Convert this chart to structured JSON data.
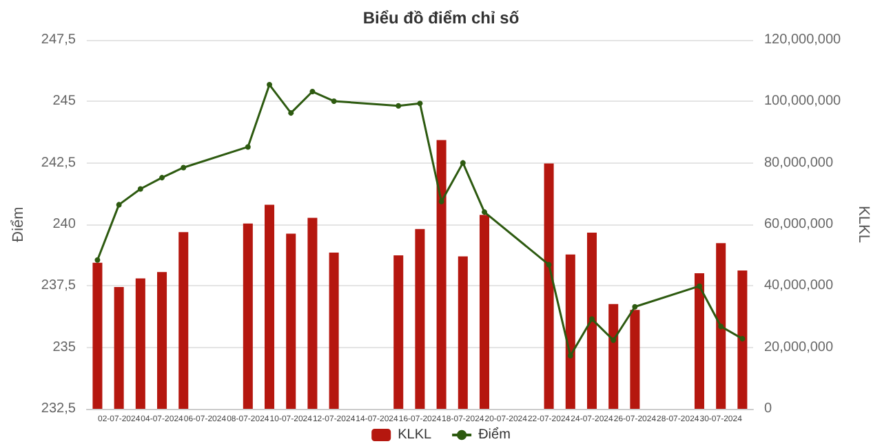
{
  "chart_data": {
    "type": "bar",
    "title": "Biểu đồ điểm chỉ số",
    "ylabel": "Điểm",
    "y2label": "KLKL",
    "categories": [
      null,
      "02-07-2024",
      null,
      "04-07-2024",
      null,
      "06-07-2024",
      null,
      "08-07-2024",
      null,
      "10-07-2024",
      null,
      "12-07-2024",
      null,
      "14-07-2024",
      null,
      "16-07-2024",
      null,
      "18-07-2024",
      null,
      "20-07-2024",
      null,
      "22-07-2024",
      null,
      "24-07-2024",
      null,
      "26-07-2024",
      null,
      "28-07-2024",
      null,
      "30-07-2024",
      null
    ],
    "series": [
      {
        "name": "KLKL",
        "axis": "y2",
        "color": "#b5170f",
        "values": [
          47500000,
          39600000,
          42400000,
          44500000,
          57500000,
          null,
          null,
          60300000,
          66400000,
          57000000,
          62100000,
          50800000,
          null,
          null,
          49900000,
          58500000,
          87400000,
          49600000,
          63100000,
          null,
          null,
          79800000,
          50200000,
          57300000,
          34100000,
          32200000,
          null,
          null,
          44100000,
          53900000,
          45000000
        ]
      },
      {
        "name": "Điểm",
        "type": "line",
        "axis": "y",
        "color": "#2d5a10",
        "marker": "circle",
        "line_style": "solid",
        "values": [
          238.55,
          240.8,
          241.44,
          241.9,
          242.31,
          null,
          null,
          243.15,
          245.68,
          244.53,
          245.4,
          245.01,
          null,
          null,
          244.82,
          244.92,
          240.93,
          242.5,
          240.5,
          null,
          null,
          238.36,
          234.66,
          236.15,
          235.29,
          236.65,
          null,
          null,
          237.49,
          235.85,
          235.35
        ]
      }
    ],
    "ylim": [
      232.5,
      247.5
    ],
    "yticks": [
      {
        "value": 232.5,
        "label": "232,5"
      },
      {
        "value": 235,
        "label": "235"
      },
      {
        "value": 237.5,
        "label": "237,5"
      },
      {
        "value": 240,
        "label": "240"
      },
      {
        "value": 242.5,
        "label": "242,5"
      },
      {
        "value": 245,
        "label": "245"
      },
      {
        "value": 247.5,
        "label": "247,5"
      }
    ],
    "y2lim": [
      0,
      120000000
    ],
    "y2ticks": [
      {
        "value": 0,
        "label": "0"
      },
      {
        "value": 20000000,
        "label": "20,000,000"
      },
      {
        "value": 40000000,
        "label": "40,000,000"
      },
      {
        "value": 60000000,
        "label": "60,000,000"
      },
      {
        "value": 80000000,
        "label": "80,000,000"
      },
      {
        "value": 100000000,
        "label": "100,000,000"
      },
      {
        "value": 120000000,
        "label": "120,000,000"
      }
    ],
    "grid": "y",
    "legend": "bottom"
  }
}
